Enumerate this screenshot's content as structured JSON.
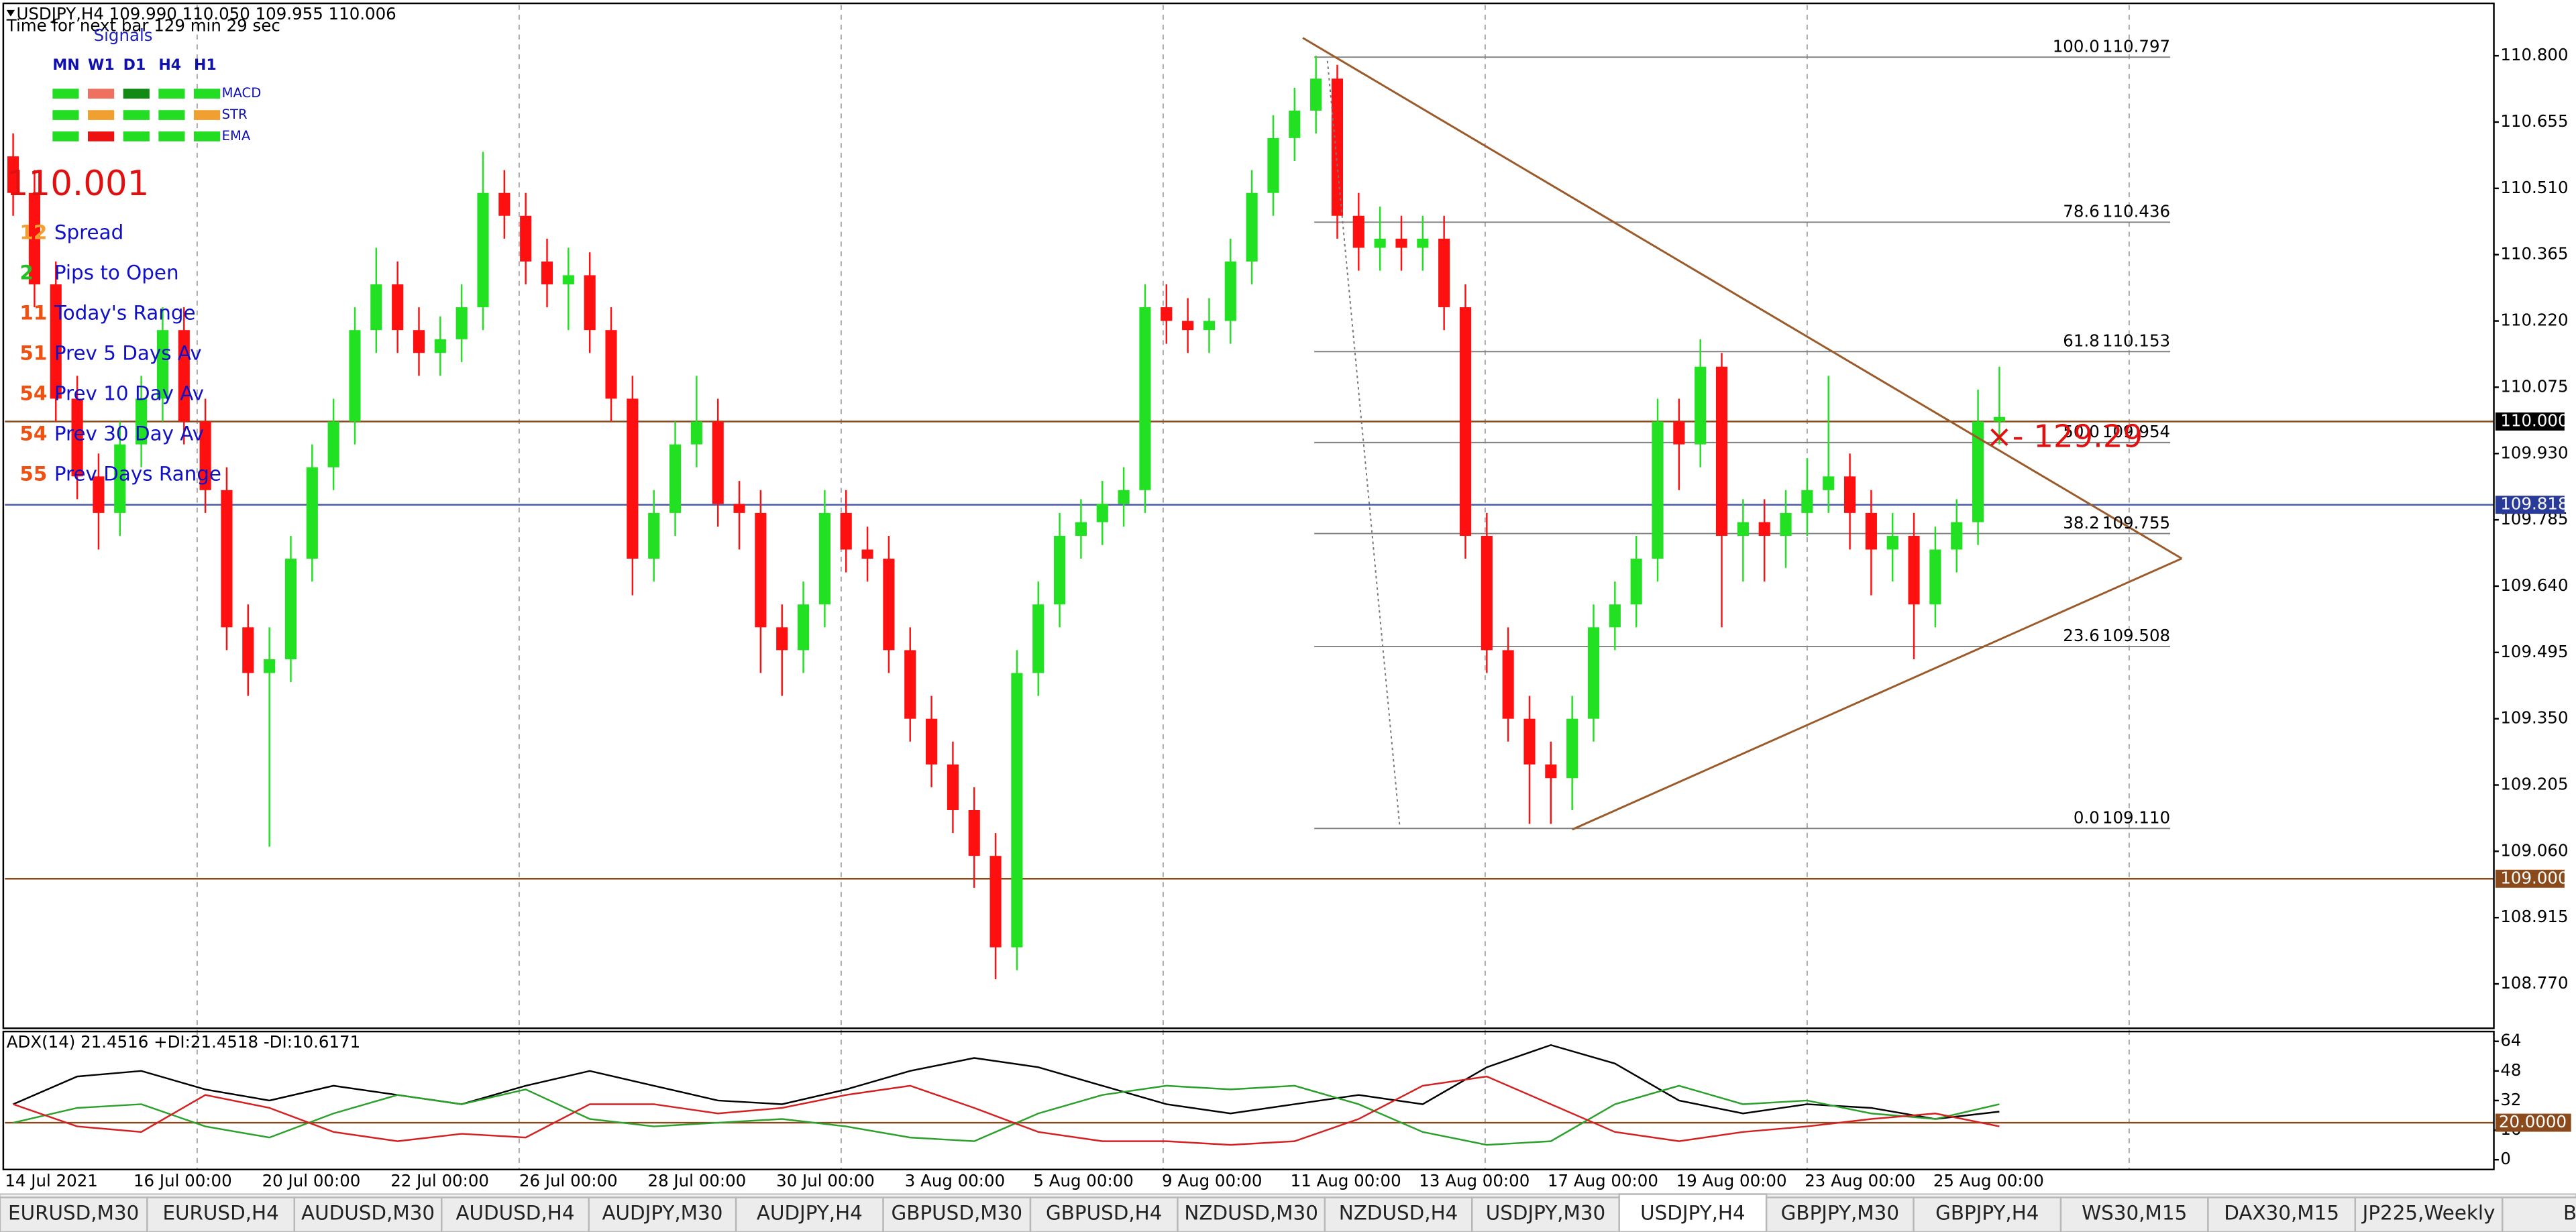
{
  "chart_data": [
    {
      "type": "candlestick",
      "title": "USDJPY,H4  109.990 110.050 109.955 110.006",
      "subtitle": "Time for next bar 129 min 29 sec",
      "annotation": "×- 129.29",
      "up_color": "#22e022",
      "down_color": "#ff1010",
      "ylim": [
        108.673,
        110.911
      ],
      "yticks": [
        {
          "value": 110.8,
          "label": "110.800"
        },
        110.655,
        {
          "value": 110.51,
          "label": "110.510"
        },
        110.365,
        {
          "value": 110.22,
          "label": "110.220"
        },
        110.075,
        {
          "value": 109.93,
          "label": "109.930"
        },
        109.785,
        {
          "value": 109.64,
          "label": "109.640"
        },
        109.495,
        {
          "value": 109.35,
          "label": "109.350"
        },
        109.205,
        {
          "value": 109.06,
          "label": "109.060"
        },
        108.915,
        {
          "value": 108.77,
          "label": "108.770"
        }
      ],
      "time_labels": [
        "14 Jul 2021",
        "16 Jul 00:00",
        "20 Jul 00:00",
        "22 Jul 00:00",
        "26 Jul 00:00",
        "28 Jul 00:00",
        "30 Jul 00:00",
        "3 Aug 00:00",
        "5 Aug 00:00",
        "9 Aug 00:00",
        "11 Aug 00:00",
        "13 Aug 00:00",
        "17 Aug 00:00",
        "19 Aug 00:00",
        "23 Aug 00:00",
        "25 Aug 00:00"
      ],
      "hlines": [
        {
          "value": 110,
          "label": "110.000",
          "color": "#8b4a1c",
          "box": "#000000"
        },
        {
          "value": 109.818,
          "label": "109.818",
          "color": "#4a5aa8",
          "box": "#2a3a98"
        },
        {
          "value": 109,
          "label": "109.000",
          "color": "#8b4a1c",
          "box": "#8b4a1c"
        }
      ],
      "fib_levels": [
        {
          "level": "100.0",
          "price": 110.797
        },
        {
          "level": "78.6",
          "price": 110.436
        },
        {
          "level": "61.8",
          "price": 110.153
        },
        {
          "level": "50.0",
          "price": 109.954
        },
        {
          "level": "38.2",
          "price": 109.755
        },
        {
          "level": "23.6",
          "price": 109.508
        },
        {
          "level": "0.0",
          "price": {
            "value": 109.11,
            "label": "109.110"
          }
        }
      ],
      "open": [
        110.58,
        110.5,
        110.3,
        110.05,
        109.88,
        109.8,
        109.95,
        110.05,
        110.2,
        110.0,
        109.85,
        109.55,
        109.45,
        109.48,
        109.7,
        109.9,
        110.0,
        110.2,
        110.3,
        110.2,
        110.15,
        110.18,
        110.25,
        110.5,
        110.45,
        110.35,
        110.3,
        110.32,
        110.2,
        110.05,
        109.7,
        109.8,
        109.95,
        110.0,
        109.82,
        109.8,
        109.55,
        109.5,
        109.6,
        109.8,
        109.72,
        109.7,
        109.5,
        109.35,
        109.25,
        109.15,
        109.05,
        108.85,
        109.45,
        109.6,
        109.75,
        109.78,
        109.82,
        109.85,
        110.25,
        110.22,
        110.2,
        110.22,
        110.35,
        110.5,
        110.62,
        110.68,
        110.75,
        110.45,
        110.38,
        110.4,
        110.38,
        110.4,
        110.25,
        109.75,
        109.5,
        109.35,
        109.25,
        109.22,
        109.35,
        109.55,
        109.6,
        109.7,
        110.0,
        109.95,
        110.12,
        109.75,
        109.78,
        109.75,
        109.8,
        109.85,
        109.88,
        109.8,
        109.72,
        109.75,
        109.6,
        109.72,
        109.78,
        110.0
      ],
      "high": [
        110.63,
        110.55,
        110.35,
        110.1,
        109.93,
        110.0,
        110.1,
        110.25,
        110.25,
        110.05,
        109.9,
        109.6,
        109.55,
        109.75,
        109.95,
        110.05,
        110.25,
        110.38,
        110.35,
        110.25,
        110.23,
        110.3,
        110.59,
        110.55,
        110.5,
        110.4,
        110.38,
        110.37,
        110.25,
        110.1,
        109.85,
        110.0,
        110.1,
        110.05,
        109.87,
        109.85,
        109.6,
        109.65,
        109.85,
        109.85,
        109.77,
        109.75,
        109.55,
        109.4,
        109.3,
        109.2,
        109.1,
        109.5,
        109.65,
        109.8,
        109.83,
        109.87,
        109.9,
        110.3,
        110.3,
        110.27,
        110.27,
        110.4,
        110.55,
        110.67,
        110.73,
        110.8,
        110.78,
        110.5,
        110.47,
        110.45,
        110.45,
        110.45,
        110.3,
        109.8,
        109.55,
        109.4,
        109.3,
        109.4,
        109.6,
        109.65,
        109.75,
        110.05,
        110.05,
        110.18,
        110.15,
        109.83,
        109.83,
        109.85,
        109.92,
        110.1,
        109.93,
        109.85,
        109.8,
        109.8,
        109.77,
        109.83,
        110.07,
        110.12
      ],
      "low": [
        110.45,
        110.25,
        110.0,
        109.83,
        109.72,
        109.75,
        109.9,
        110.0,
        109.95,
        109.8,
        109.5,
        109.4,
        109.07,
        109.43,
        109.65,
        109.85,
        109.95,
        110.15,
        110.15,
        110.1,
        110.1,
        110.13,
        110.2,
        110.4,
        110.3,
        110.25,
        110.2,
        110.15,
        110.0,
        109.62,
        109.65,
        109.75,
        109.9,
        109.77,
        109.72,
        109.45,
        109.4,
        109.45,
        109.55,
        109.67,
        109.65,
        109.45,
        109.3,
        109.2,
        109.1,
        108.98,
        108.78,
        108.8,
        109.4,
        109.55,
        109.7,
        109.73,
        109.77,
        109.8,
        110.17,
        110.15,
        110.15,
        110.17,
        110.3,
        110.45,
        110.57,
        110.63,
        110.4,
        110.33,
        110.33,
        110.33,
        110.33,
        110.2,
        109.7,
        109.45,
        109.3,
        109.12,
        109.12,
        109.15,
        109.3,
        109.5,
        109.55,
        109.65,
        109.85,
        109.9,
        109.55,
        109.65,
        109.65,
        109.68,
        109.75,
        109.8,
        109.72,
        109.62,
        109.65,
        109.48,
        109.55,
        109.67,
        109.73,
        109.95
      ],
      "close": [
        110.5,
        110.3,
        110.05,
        109.88,
        109.8,
        109.95,
        110.05,
        110.2,
        110.0,
        109.85,
        109.55,
        109.45,
        109.48,
        109.7,
        109.9,
        110.0,
        110.2,
        110.3,
        110.2,
        110.15,
        110.18,
        110.25,
        110.5,
        110.45,
        110.35,
        110.3,
        110.32,
        110.2,
        110.05,
        109.7,
        109.8,
        109.95,
        110.0,
        109.82,
        109.8,
        109.55,
        109.5,
        109.6,
        109.8,
        109.72,
        109.7,
        109.5,
        109.35,
        109.25,
        109.15,
        109.05,
        108.85,
        109.45,
        109.6,
        109.75,
        109.78,
        109.82,
        109.85,
        110.25,
        110.22,
        110.2,
        110.22,
        110.35,
        110.5,
        110.62,
        110.68,
        110.75,
        110.45,
        110.38,
        110.4,
        110.38,
        110.4,
        110.25,
        109.75,
        109.5,
        109.35,
        109.25,
        109.22,
        109.35,
        109.55,
        109.6,
        109.7,
        110.0,
        109.95,
        110.12,
        109.75,
        109.78,
        109.75,
        109.8,
        109.85,
        109.88,
        109.8,
        109.72,
        109.75,
        109.6,
        109.72,
        109.78,
        110.0,
        110.01
      ]
    },
    {
      "type": "line",
      "title": "ADX(14) 21.4516 +DI:21.4518 -DI:10.6171",
      "ylim": [
        -5.3,
        69.3
      ],
      "yticks": [
        64,
        48,
        32,
        16,
        0
      ],
      "level": {
        "value": 20,
        "label": "20.0000",
        "color": "#8b4a1c"
      },
      "series": [
        {
          "color": "#000000",
          "values": [
            30,
            45,
            48,
            38,
            32,
            40,
            35,
            30,
            40,
            48,
            40,
            32,
            30,
            38,
            48,
            55,
            50,
            40,
            30,
            25,
            30,
            35,
            30,
            50,
            62,
            52,
            32,
            25,
            30,
            28,
            22,
            26
          ]
        },
        {
          "color": "#2ca02c",
          "values": [
            20,
            28,
            30,
            18,
            12,
            25,
            35,
            30,
            38,
            22,
            18,
            20,
            22,
            18,
            12,
            10,
            25,
            35,
            40,
            38,
            40,
            30,
            15,
            8,
            10,
            30,
            40,
            30,
            32,
            25,
            22,
            30
          ]
        },
        {
          "color": "#d42020",
          "values": [
            30,
            18,
            15,
            35,
            28,
            15,
            10,
            14,
            12,
            30,
            30,
            25,
            28,
            35,
            40,
            28,
            15,
            10,
            10,
            8,
            10,
            22,
            40,
            45,
            30,
            15,
            10,
            15,
            18,
            22,
            25,
            18
          ]
        }
      ]
    }
  ],
  "panel": {
    "signals_title": "Signals",
    "columns": [
      "MN",
      "W1",
      "D1",
      "H4",
      "H1"
    ],
    "rows": [
      {
        "name": "MACD",
        "colors": [
          "#22dd22",
          "#f07060",
          "#138a13",
          "#22dd22",
          "#22dd22"
        ]
      },
      {
        "name": "STR",
        "colors": [
          "#22dd22",
          "#f0a030",
          "#22dd22",
          "#22dd22",
          "#f0a030"
        ]
      },
      {
        "name": "EMA",
        "colors": [
          "#22dd22",
          "#ee1111",
          "#22dd22",
          "#22dd22",
          "#22dd22"
        ]
      }
    ],
    "price": "110.001",
    "stats": [
      {
        "value": 12,
        "label": "Spread",
        "color": "#f0a030"
      },
      {
        "value": 2,
        "label": "Pips to Open",
        "color": "#22c022"
      },
      {
        "value": 11,
        "label": "Today's Range",
        "color": "#f05010"
      },
      {
        "value": 51,
        "label": "Prev 5 Days Av",
        "color": "#f05010"
      },
      {
        "value": 54,
        "label": "Prev 10 Day Av",
        "color": "#f05010"
      },
      {
        "value": 54,
        "label": "Prev 30 Day Av",
        "color": "#f05010"
      },
      {
        "value": 55,
        "label": "Prev Days Range",
        "color": "#f05010"
      }
    ]
  },
  "tabs": [
    "EURUSD,M30",
    "EURUSD,H4",
    "AUDUSD,M30",
    "AUDUSD,H4",
    "AUDJPY,M30",
    "AUDJPY,H4",
    "GBPUSD,M30",
    "GBPUSD,H4",
    "NZDUSD,M30",
    "NZDUSD,H4",
    "USDJPY,M30",
    "USDJPY,H4",
    "GBPJPY,M30",
    "GBPJPY,H4",
    "WS30,M15",
    "DAX30,M15",
    "JP225,Weekly",
    "BT"
  ],
  "active_tab": 11
}
